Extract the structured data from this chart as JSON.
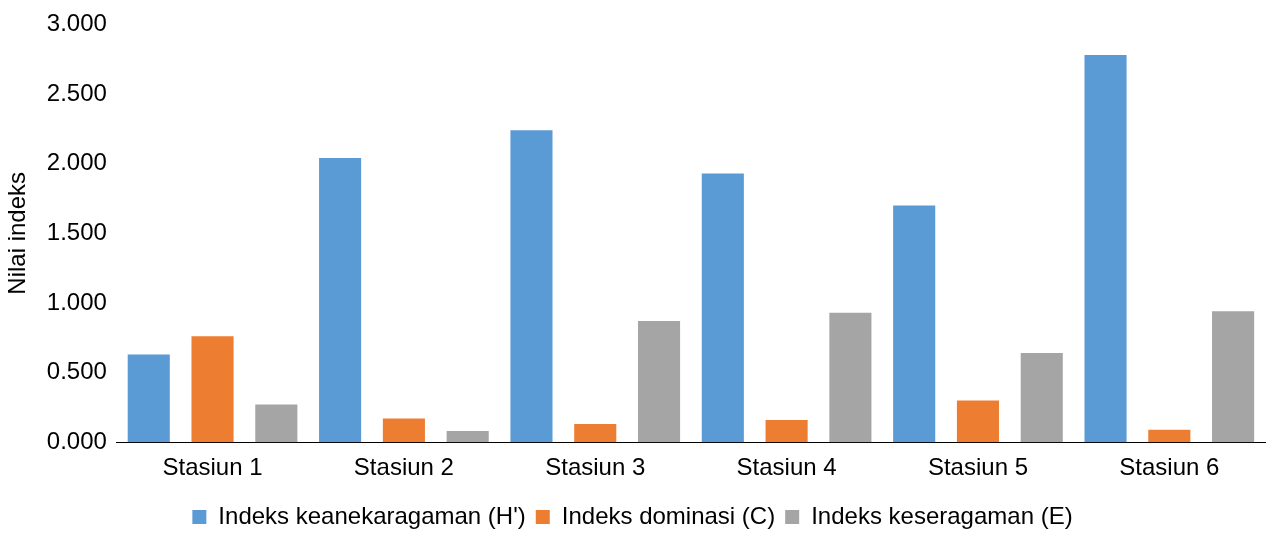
{
  "chart_data": {
    "type": "bar",
    "ylabel": "Nilai indeks",
    "categories": [
      "Stasiun 1",
      "Stasiun 2",
      "Stasiun 3",
      "Stasiun 4",
      "Stasiun 5",
      "Stasiun 6"
    ],
    "series": [
      {
        "name": "Indeks keanekaragaman (H')",
        "color": "#5b9bd5",
        "values": [
          0.63,
          2.04,
          2.24,
          1.93,
          1.7,
          2.78
        ]
      },
      {
        "name": "Indeks dominasi (C)",
        "color": "#ed7d31",
        "values": [
          0.76,
          0.17,
          0.13,
          0.16,
          0.3,
          0.09
        ]
      },
      {
        "name": "Indeks keseragaman (E)",
        "color": "#a5a5a5",
        "values": [
          0.27,
          0.08,
          0.87,
          0.93,
          0.64,
          0.94
        ]
      }
    ],
    "ylim": [
      0,
      3
    ],
    "yticks": [
      {
        "value": 0,
        "label": "0.000"
      },
      {
        "value": 0.5,
        "label": "0.500"
      },
      {
        "value": 1,
        "label": "1.000"
      },
      {
        "value": 1.5,
        "label": "1.500"
      },
      {
        "value": 2,
        "label": "2.000"
      },
      {
        "value": 2.5,
        "label": "2.500"
      },
      {
        "value": 3,
        "label": "3.000"
      }
    ],
    "grid": false,
    "legend": "bottom"
  }
}
